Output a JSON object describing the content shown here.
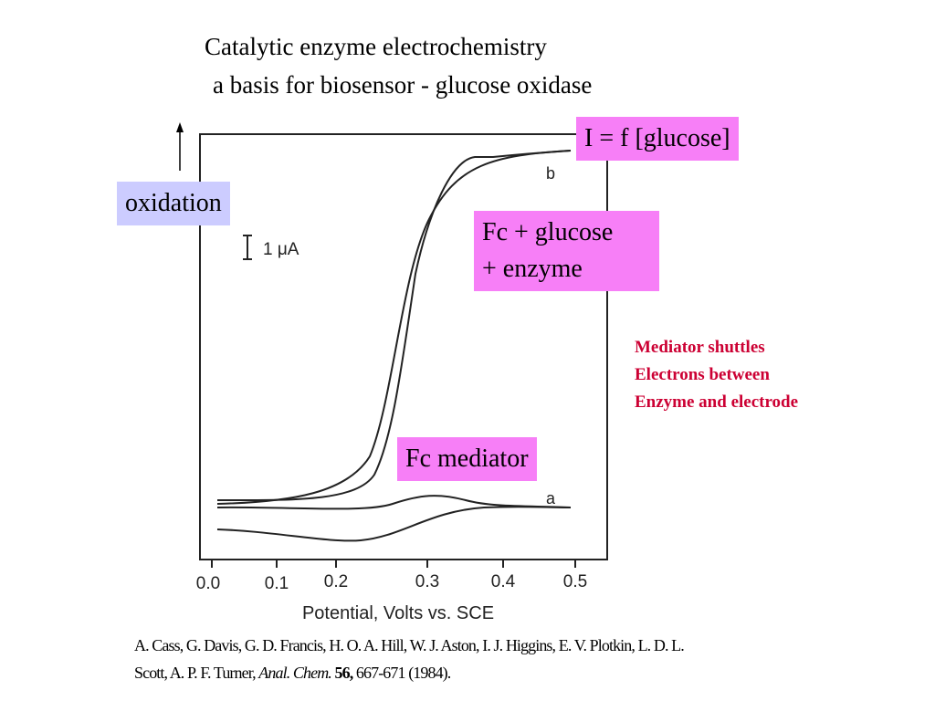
{
  "slide": {
    "title": [
      "Catalytic enzyme electrochemistry",
      "a basis for biosensor - glucose oxidase"
    ],
    "callouts": {
      "response": "I = f [glucose]",
      "direction": "oxidation",
      "enzyme_case": [
        "Fc + glucose",
        "+ enzyme"
      ],
      "mediator_case": "Fc mediator"
    },
    "note": [
      "Mediator shuttles",
      "Electrons between",
      "Enzyme and electrode"
    ]
  },
  "figure": {
    "x_tick_labels": [
      "0.0",
      "0.1",
      "0.2",
      "0.3",
      "0.4",
      "0.5"
    ],
    "x_axis_label": "Potential, Volts vs. SCE",
    "scale_label": "1 μA",
    "curve_labels": [
      "a",
      "b"
    ]
  },
  "citation": {
    "line1": "A. Cass, G. Davis, G. D. Francis, H. O. A. Hill, W. J. Aston, I. J. Higgins, E. V. Plotkin, L. D. L.",
    "line2": [
      "Scott, A. P. F. Turner, ",
      "Anal. Chem.",
      " 56,",
      " 667-671 (1984)."
    ]
  }
}
